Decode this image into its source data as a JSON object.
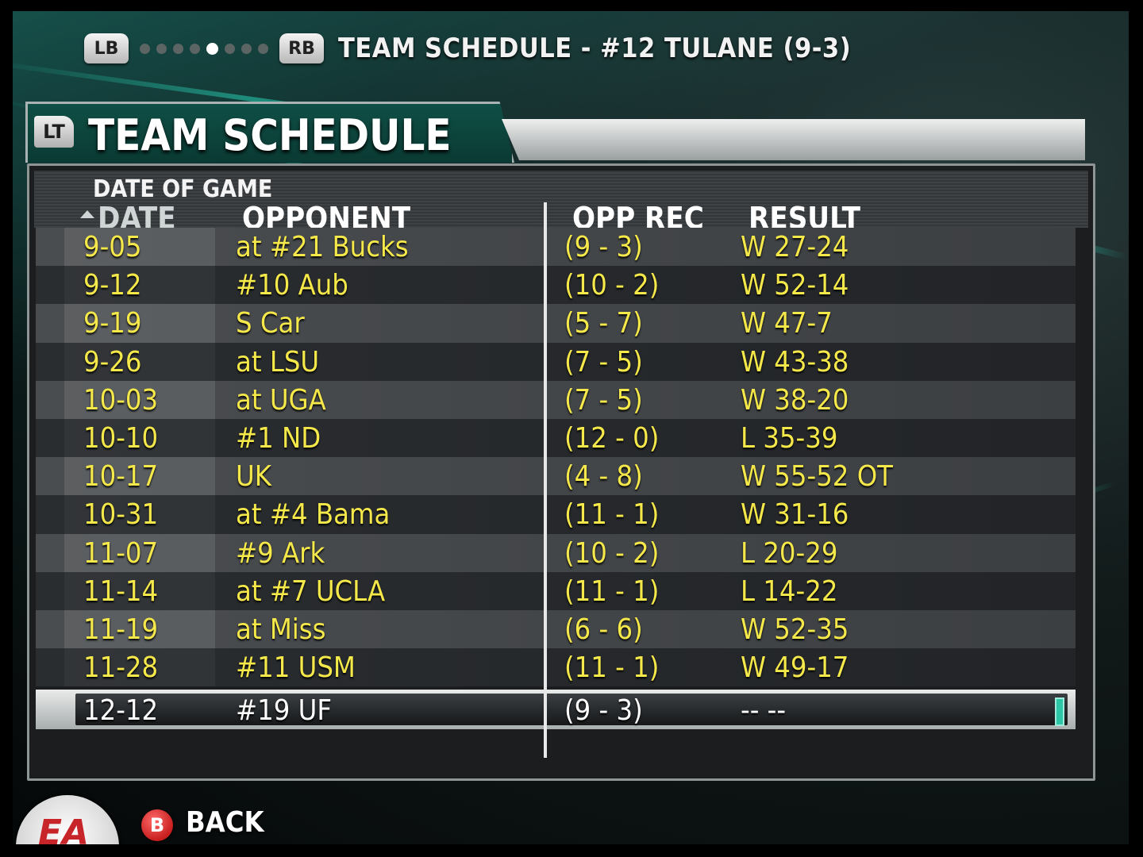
{
  "nav": {
    "left_bumper": "LB",
    "right_bumper": "RB",
    "page_count": 8,
    "active_page": 4,
    "title": "TEAM SCHEDULE - #12 TULANE (9-3)"
  },
  "header": {
    "trigger_label": "LT",
    "title": "TEAM SCHEDULE"
  },
  "table": {
    "sort_hint": "DATE OF GAME",
    "columns": {
      "date": "DATE",
      "opponent": "OPPONENT",
      "opp_rec": "OPP REC",
      "result": "RESULT"
    },
    "rows": [
      {
        "date": "9-05",
        "opponent": "at #21 Bucks",
        "opp_rec": "(9 - 3)",
        "result": "W 27-24"
      },
      {
        "date": "9-12",
        "opponent": "#10 Aub",
        "opp_rec": "(10 - 2)",
        "result": "W 52-14"
      },
      {
        "date": "9-19",
        "opponent": "S Car",
        "opp_rec": "(5 - 7)",
        "result": "W 47-7"
      },
      {
        "date": "9-26",
        "opponent": "at LSU",
        "opp_rec": "(7 - 5)",
        "result": "W 43-38"
      },
      {
        "date": "10-03",
        "opponent": "at UGA",
        "opp_rec": "(7 - 5)",
        "result": "W 38-20"
      },
      {
        "date": "10-10",
        "opponent": "#1 ND",
        "opp_rec": "(12 - 0)",
        "result": "L 35-39"
      },
      {
        "date": "10-17",
        "opponent": "UK",
        "opp_rec": "(4 - 8)",
        "result": "W 55-52 OT"
      },
      {
        "date": "10-31",
        "opponent": "at #4 Bama",
        "opp_rec": "(11 - 1)",
        "result": "W 31-16"
      },
      {
        "date": "11-07",
        "opponent": "#9 Ark",
        "opp_rec": "(10 - 2)",
        "result": "L 20-29"
      },
      {
        "date": "11-14",
        "opponent": "at #7 UCLA",
        "opp_rec": "(11 - 1)",
        "result": "L 14-22"
      },
      {
        "date": "11-19",
        "opponent": "at Miss",
        "opp_rec": "(6 - 6)",
        "result": "W 52-35"
      },
      {
        "date": "11-28",
        "opponent": "#11 USM",
        "opp_rec": "(11 - 1)",
        "result": "W 49-17"
      },
      {
        "date": "12-12",
        "opponent": "#19 UF",
        "opp_rec": "(9 - 3)",
        "result": "-- --",
        "selected": true
      }
    ]
  },
  "footer": {
    "logo_text": "EA",
    "back_button": "B",
    "back_label": "BACK"
  },
  "colors": {
    "row_text": "#f5e84a",
    "accent": "#2dc6a6",
    "selected_text": "#ffffff"
  }
}
